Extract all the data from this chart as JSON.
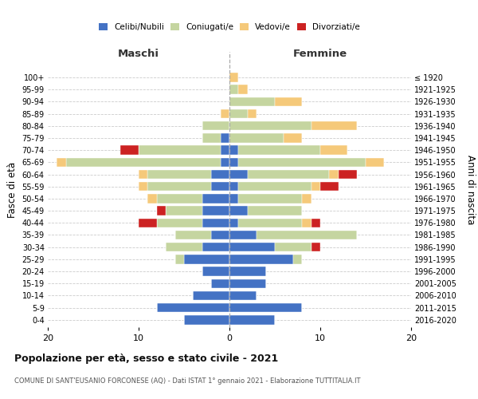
{
  "age_groups": [
    "0-4",
    "5-9",
    "10-14",
    "15-19",
    "20-24",
    "25-29",
    "30-34",
    "35-39",
    "40-44",
    "45-49",
    "50-54",
    "55-59",
    "60-64",
    "65-69",
    "70-74",
    "75-79",
    "80-84",
    "85-89",
    "90-94",
    "95-99",
    "100+"
  ],
  "birth_years": [
    "2016-2020",
    "2011-2015",
    "2006-2010",
    "2001-2005",
    "1996-2000",
    "1991-1995",
    "1986-1990",
    "1981-1985",
    "1976-1980",
    "1971-1975",
    "1966-1970",
    "1961-1965",
    "1956-1960",
    "1951-1955",
    "1946-1950",
    "1941-1945",
    "1936-1940",
    "1931-1935",
    "1926-1930",
    "1921-1925",
    "≤ 1920"
  ],
  "colors": {
    "celibe": "#4472c4",
    "coniugato": "#c5d5a0",
    "vedovo": "#f5c97a",
    "divorziato": "#cc2222"
  },
  "maschi": {
    "celibe": [
      5,
      8,
      4,
      2,
      3,
      5,
      3,
      2,
      3,
      3,
      3,
      2,
      2,
      1,
      1,
      1,
      0,
      0,
      0,
      0,
      0
    ],
    "coniugato": [
      0,
      0,
      0,
      0,
      0,
      1,
      4,
      4,
      5,
      4,
      5,
      7,
      7,
      17,
      9,
      2,
      3,
      0,
      0,
      0,
      0
    ],
    "vedovo": [
      0,
      0,
      0,
      0,
      0,
      0,
      0,
      0,
      0,
      0,
      1,
      1,
      1,
      1,
      0,
      0,
      0,
      1,
      0,
      0,
      0
    ],
    "divorziato": [
      0,
      0,
      0,
      0,
      0,
      0,
      0,
      0,
      2,
      1,
      0,
      0,
      0,
      0,
      2,
      0,
      0,
      0,
      0,
      0,
      0
    ]
  },
  "femmine": {
    "celibe": [
      5,
      8,
      3,
      4,
      4,
      7,
      5,
      3,
      1,
      2,
      1,
      1,
      2,
      1,
      1,
      0,
      0,
      0,
      0,
      0,
      0
    ],
    "coniugato": [
      0,
      0,
      0,
      0,
      0,
      1,
      4,
      11,
      7,
      6,
      7,
      8,
      9,
      14,
      9,
      6,
      9,
      2,
      5,
      1,
      0
    ],
    "vedovo": [
      0,
      0,
      0,
      0,
      0,
      0,
      0,
      0,
      1,
      0,
      1,
      1,
      1,
      2,
      3,
      2,
      5,
      1,
      3,
      1,
      1
    ],
    "divorziato": [
      0,
      0,
      0,
      0,
      0,
      0,
      1,
      0,
      1,
      0,
      0,
      2,
      2,
      0,
      0,
      0,
      0,
      0,
      0,
      0,
      0
    ]
  },
  "xlim": 20,
  "title": "Popolazione per età, sesso e stato civile - 2021",
  "subtitle": "COMUNE DI SANT'EUSANIO FORCONESE (AQ) - Dati ISTAT 1° gennaio 2021 - Elaborazione TUTTITALIA.IT",
  "ylabel_left": "Fasce di età",
  "ylabel_right": "Anni di nascita",
  "xlabel_maschi": "Maschi",
  "xlabel_femmine": "Femmine",
  "legend_labels": [
    "Celibi/Nubili",
    "Coniugati/e",
    "Vedovi/e",
    "Divorziati/e"
  ],
  "background_color": "#ffffff",
  "grid_color": "#cccccc"
}
